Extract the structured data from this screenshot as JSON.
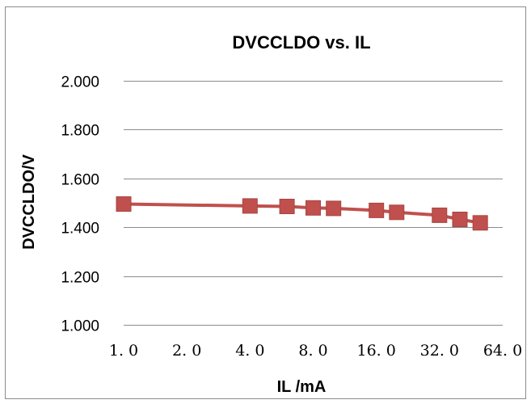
{
  "chart_data": {
    "type": "line",
    "title": "DVCCLDO vs. IL",
    "xlabel": "IL /mA",
    "ylabel": "DVCCLDO/V",
    "x_scale": "log2",
    "xlim": [
      1.0,
      64.0
    ],
    "ylim": [
      1.0,
      2.0
    ],
    "x_ticks": [
      "1. 0",
      "2. 0",
      "4. 0",
      "8. 0",
      "16. 0",
      "32. 0",
      "64. 0"
    ],
    "y_ticks": [
      "1.000",
      "1.200",
      "1.400",
      "1.600",
      "1.800",
      "2.000"
    ],
    "grid": "horizontal",
    "legend": "none",
    "series": [
      {
        "color": "#c0504d",
        "marker": "square",
        "x": [
          1.0,
          4.0,
          6.0,
          8.0,
          10.0,
          16.0,
          20.0,
          32.0,
          40.0,
          50.0
        ],
        "y": [
          1.495,
          1.487,
          1.485,
          1.479,
          1.477,
          1.469,
          1.461,
          1.449,
          1.432,
          1.418
        ]
      }
    ]
  }
}
